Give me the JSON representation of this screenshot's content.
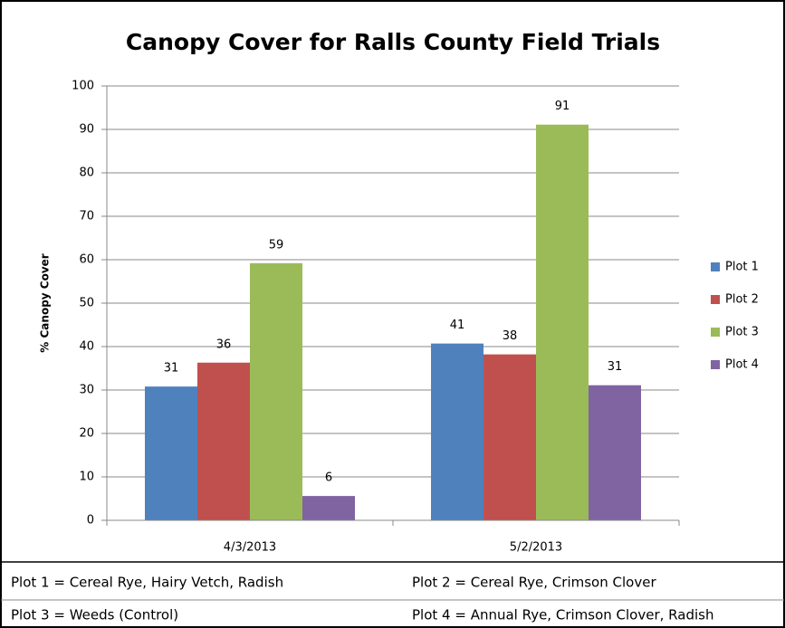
{
  "chart_data": {
    "type": "bar",
    "title": "Canopy Cover for Ralls County Field Trials",
    "y_label": "% Canopy Cover",
    "categories": [
      "4/3/2013",
      "5/2/2013"
    ],
    "series": [
      {
        "name": "Plot 1",
        "color": "#4f81bd",
        "values": [
          30.8,
          40.7
        ],
        "value_labels": [
          "31",
          "41"
        ]
      },
      {
        "name": "Plot 2",
        "color": "#c0504d",
        "values": [
          36.3,
          38.2
        ],
        "value_labels": [
          "36",
          "38"
        ]
      },
      {
        "name": "Plot 3",
        "color": "#9bbb59",
        "values": [
          59.2,
          91.1
        ],
        "value_labels": [
          "59",
          "91"
        ]
      },
      {
        "name": "Plot 4",
        "color": "#8064a2",
        "values": [
          5.6,
          31.1
        ],
        "value_labels": [
          "6",
          "31"
        ]
      }
    ],
    "ylim": [
      0,
      100
    ],
    "yticks": [
      0,
      10,
      20,
      30,
      40,
      50,
      60,
      70,
      80,
      90,
      100
    ],
    "grid": true,
    "legend": "right",
    "annotations": [
      "Plot 1 = Cereal Rye, Hairy Vetch, Radish",
      "Plot 2 = Cereal Rye, Crimson Clover",
      "Plot 3 = Weeds (Control)",
      "Plot 4 = Annual Rye, Crimson Clover, Radish"
    ]
  }
}
